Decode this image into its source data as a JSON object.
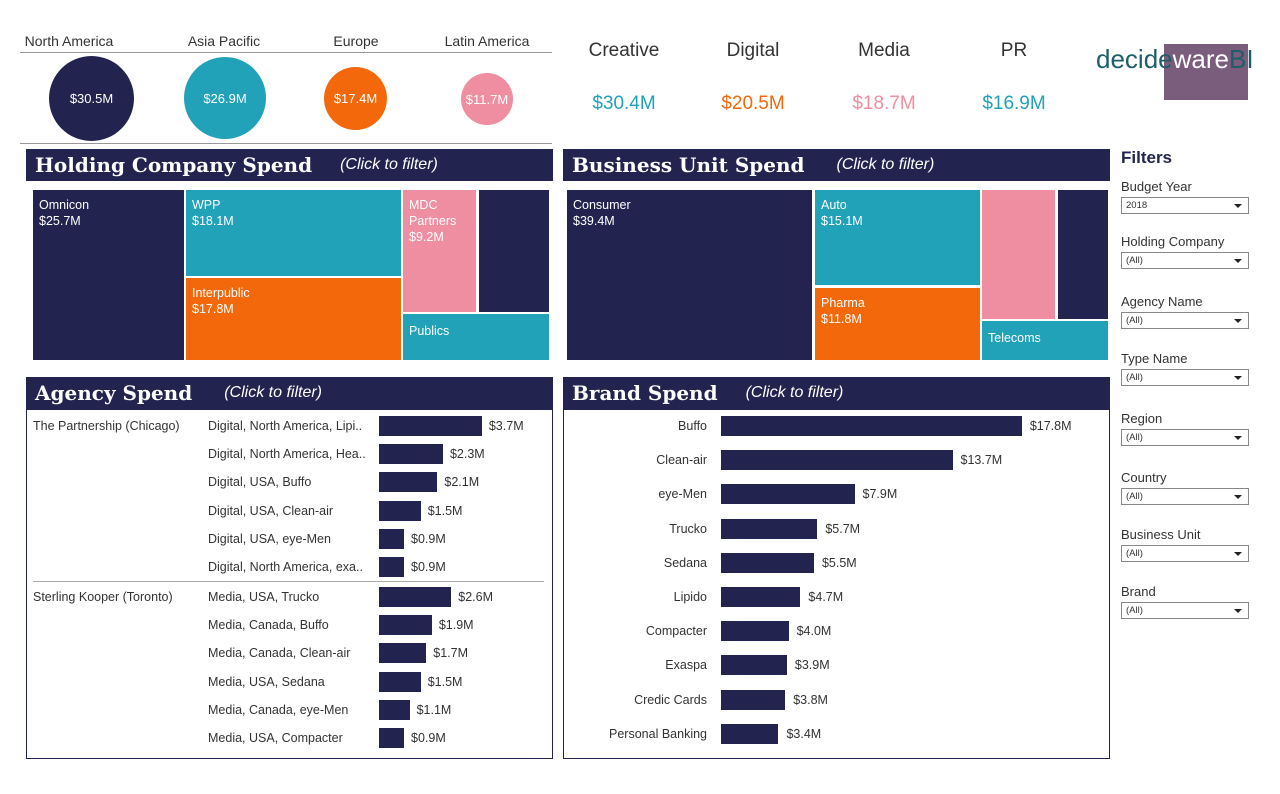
{
  "colors": {
    "navy": "#232350",
    "teal": "#22a2b8",
    "orange": "#f2680b",
    "pink": "#ef8ea0"
  },
  "regions": [
    {
      "label": "North America",
      "value": "$30.5M",
      "color": "#232350"
    },
    {
      "label": "Asia Pacific",
      "value": "$26.9M",
      "color": "#22a2b8"
    },
    {
      "label": "Europe",
      "value": "$17.4M",
      "color": "#f2680b"
    },
    {
      "label": "Latin America",
      "value": "$11.7M",
      "color": "#ef8ea0"
    }
  ],
  "categories": [
    {
      "label": "Creative",
      "value": "$30.4M",
      "color": "#22a2b8"
    },
    {
      "label": "Digital",
      "value": "$20.5M",
      "color": "#f2680b"
    },
    {
      "label": "Media",
      "value": "$18.7M",
      "color": "#ef8ea0"
    },
    {
      "label": "PR",
      "value": "$16.9M",
      "color": "#22a2b8"
    }
  ],
  "logo": {
    "part1": "decide",
    "part2": "ware",
    "part3": "BI"
  },
  "holding_panel": {
    "title": "Holding Company Spend",
    "hint": "(Click to filter)",
    "tiles": [
      {
        "name": "Omnicon",
        "value": "$25.7M"
      },
      {
        "name": "WPP",
        "value": "$18.1M"
      },
      {
        "name": "MDC Partners",
        "value": "$9.2M"
      },
      {
        "name": "Interpublic",
        "value": "$17.8M"
      },
      {
        "name": "Publics",
        "value": ""
      }
    ]
  },
  "business_panel": {
    "title": "Business Unit Spend",
    "hint": "(Click to filter)",
    "tiles": [
      {
        "name": "Consumer",
        "value": "$39.4M"
      },
      {
        "name": "Auto",
        "value": "$15.1M"
      },
      {
        "name": "Pharma",
        "value": "$11.8M"
      },
      {
        "name": "Telecoms",
        "value": ""
      }
    ]
  },
  "agency_panel": {
    "title": "Agency Spend",
    "hint": "(Click to filter)",
    "groups": [
      {
        "agency": "The Partnership (Chicago)",
        "rows": [
          {
            "label": "Digital, North America, Lipi..",
            "value": 3.7,
            "display": "$3.7M"
          },
          {
            "label": "Digital, North America, Hea..",
            "value": 2.3,
            "display": "$2.3M"
          },
          {
            "label": "Digital, USA, Buffo",
            "value": 2.1,
            "display": "$2.1M"
          },
          {
            "label": "Digital, USA, Clean-air",
            "value": 1.5,
            "display": "$1.5M"
          },
          {
            "label": "Digital, USA, eye-Men",
            "value": 0.9,
            "display": "$0.9M"
          },
          {
            "label": "Digital, North America, exa..",
            "value": 0.9,
            "display": "$0.9M"
          }
        ]
      },
      {
        "agency": "Sterling Kooper (Toronto)",
        "rows": [
          {
            "label": "Media, USA, Trucko",
            "value": 2.6,
            "display": "$2.6M"
          },
          {
            "label": "Media, Canada, Buffo",
            "value": 1.9,
            "display": "$1.9M"
          },
          {
            "label": "Media, Canada, Clean-air",
            "value": 1.7,
            "display": "$1.7M"
          },
          {
            "label": "Media, USA, Sedana",
            "value": 1.5,
            "display": "$1.5M"
          },
          {
            "label": "Media, Canada, eye-Men",
            "value": 1.1,
            "display": "$1.1M"
          },
          {
            "label": "Media, USA, Compacter",
            "value": 0.9,
            "display": "$0.9M"
          }
        ]
      }
    ]
  },
  "brand_panel": {
    "title": "Brand Spend",
    "hint": "(Click to filter)"
  },
  "chart_data": {
    "type": "bar",
    "title": "Brand Spend",
    "orientation": "horizontal",
    "categories": [
      "Buffo",
      "Clean-air",
      "eye-Men",
      "Trucko",
      "Sedana",
      "Lipido",
      "Compacter",
      "Exaspa",
      "Credic Cards",
      "Personal Banking"
    ],
    "values": [
      17.8,
      13.7,
      7.9,
      5.7,
      5.5,
      4.7,
      4.0,
      3.9,
      3.8,
      3.4
    ],
    "labels": [
      "$17.8M",
      "$13.7M",
      "$7.9M",
      "$5.7M",
      "$5.5M",
      "$4.7M",
      "$4.0M",
      "$3.9M",
      "$3.8M",
      "$3.4M"
    ],
    "unit": "$M"
  },
  "filters": {
    "title": "Filters",
    "items": [
      {
        "label": "Budget Year",
        "value": "2018"
      },
      {
        "label": "Holding Company",
        "value": "(All)"
      },
      {
        "label": "Agency Name",
        "value": "(All)"
      },
      {
        "label": "Type Name",
        "value": "(All)"
      },
      {
        "label": "Region",
        "value": "(All)"
      },
      {
        "label": "Country",
        "value": "(All)"
      },
      {
        "label": "Business Unit",
        "value": "(All)"
      },
      {
        "label": "Brand",
        "value": "(All)"
      }
    ]
  }
}
